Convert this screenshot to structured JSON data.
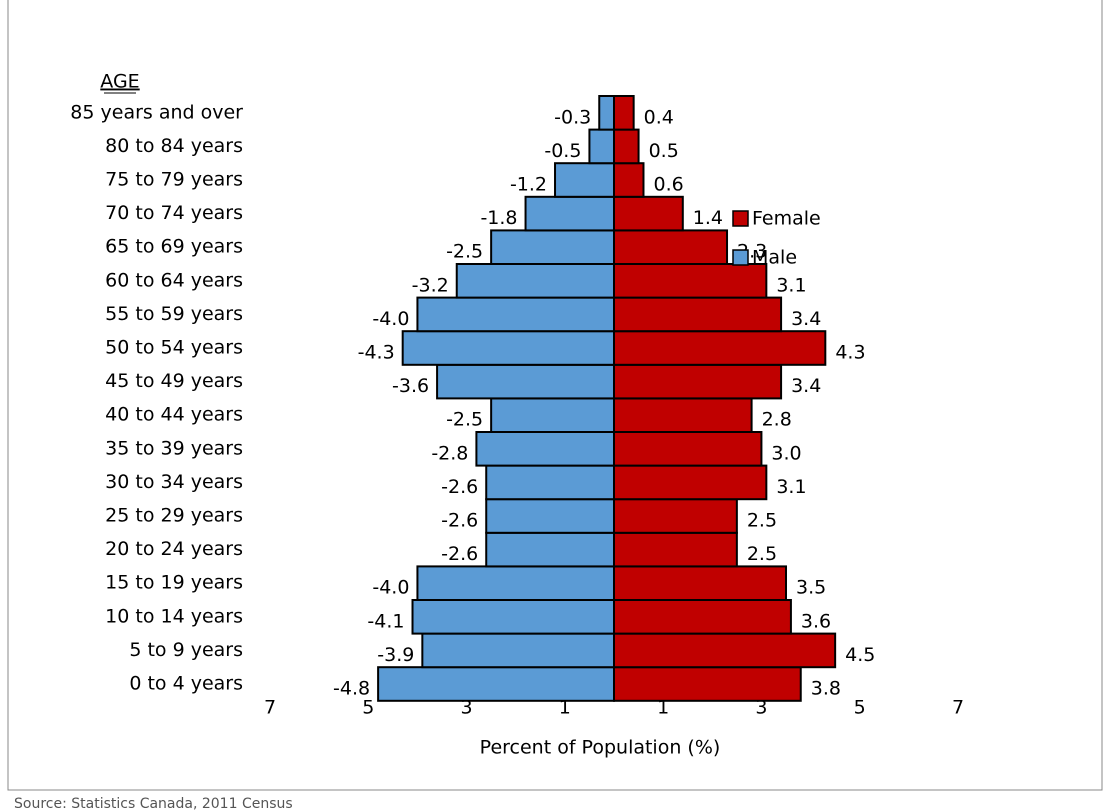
{
  "chart_data": {
    "type": "bar",
    "orientation": "horizontal",
    "y_header": "AGE",
    "x_label": "Percent of Population (%)",
    "source": "Source: Statistics Canada, 2011 Census",
    "categories": [
      "0 to 4 years",
      "5 to 9 years",
      "10 to 14 years",
      "15 to 19 years",
      "20 to 24 years",
      "25 to 29 years",
      "30 to 34 years",
      "35 to 39 years",
      "40 to 44 years",
      "45 to 49 years",
      "50 to 54 years",
      "55 to 59 years",
      "60 to 64 years",
      "65 to 69 years",
      "70 to 74 years",
      "75 to 79 years",
      "80 to 84 years",
      "85 years and over"
    ],
    "series": [
      {
        "name": "Female",
        "color": "#c00000",
        "values": [
          3.8,
          4.5,
          3.6,
          3.5,
          2.5,
          2.5,
          3.1,
          3.0,
          2.8,
          3.4,
          4.3,
          3.4,
          3.1,
          2.3,
          1.4,
          0.6,
          0.5,
          0.4
        ],
        "value_labels": [
          "3.8",
          "4.5",
          "3.6",
          "3.5",
          "2.5",
          "2.5",
          "3.1",
          "3.0",
          "2.8",
          "3.4",
          "4.3",
          "3.4",
          "3.1",
          "2.3",
          "1.4",
          "0.6",
          "0.5",
          "0.4"
        ]
      },
      {
        "name": "Male",
        "color": "#5b9bd5",
        "values": [
          -4.8,
          -3.9,
          -4.1,
          -4.0,
          -2.6,
          -2.6,
          -2.6,
          -2.8,
          -2.5,
          -3.6,
          -4.3,
          -4.0,
          -3.2,
          -2.5,
          -1.8,
          -1.2,
          -0.5,
          -0.3
        ],
        "value_labels": [
          "-4.8",
          "-3.9",
          "-4.1",
          "-4.0",
          "-2.6",
          "-2.6",
          "-2.6",
          "-2.8",
          "-2.5",
          "-3.6",
          "-4.3",
          "-4.0",
          "-3.2",
          "-2.5",
          "-1.8",
          "-1.2",
          "-0.5",
          "-0.3"
        ]
      }
    ],
    "xlim": [
      -7,
      7
    ],
    "xticks": [
      {
        "value": -7,
        "label": "7"
      },
      {
        "value": -5,
        "label": "5"
      },
      {
        "value": -3,
        "label": "3"
      },
      {
        "value": -1,
        "label": "1"
      },
      1,
      3,
      5,
      7
    ],
    "legend": "right"
  }
}
